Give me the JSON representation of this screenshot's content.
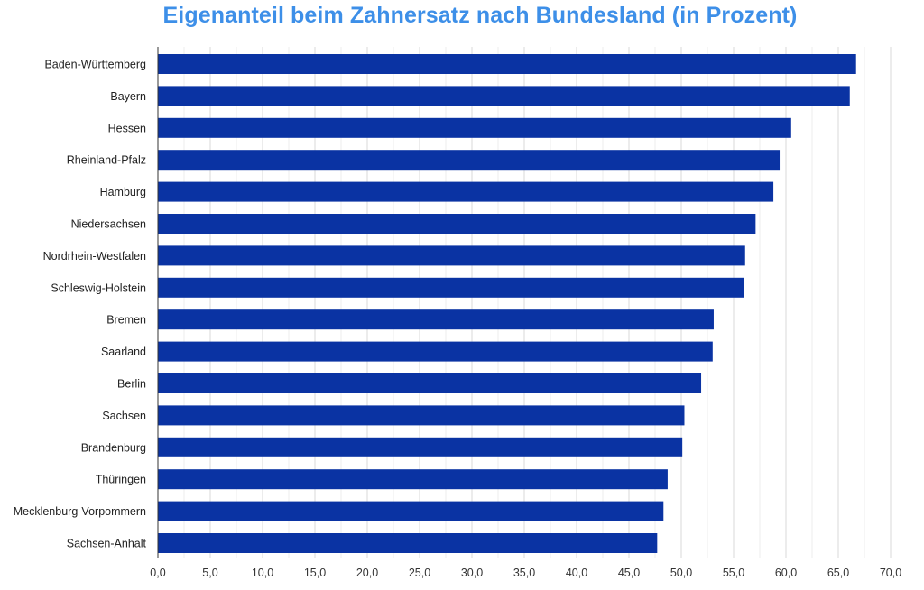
{
  "chart_data": {
    "type": "bar",
    "orientation": "horizontal",
    "title": "Eigenanteil beim Zahnersatz nach Bundesland (in Prozent)",
    "categories": [
      "Baden-Württemberg",
      "Bayern",
      "Hessen",
      "Rheinland-Pfalz",
      "Hamburg",
      "Niedersachsen",
      "Nordrhein-Westfalen",
      "Schleswig-Holstein",
      "Bremen",
      "Saarland",
      "Berlin",
      "Sachsen",
      "Brandenburg",
      "Thüringen",
      "Mecklenburg-Vorpommern",
      "Sachsen-Anhalt"
    ],
    "values": [
      66.7,
      66.1,
      60.5,
      59.4,
      58.8,
      57.1,
      56.1,
      56.0,
      53.1,
      53.0,
      51.9,
      50.3,
      50.1,
      48.7,
      48.3,
      47.7
    ],
    "xlim": [
      0,
      70
    ],
    "ticks": [
      "0,0",
      "5,0",
      "10,0",
      "15,0",
      "20,0",
      "25,0",
      "30,0",
      "35,0",
      "40,0",
      "45,0",
      "50,0",
      "55,0",
      "60,0",
      "65,0",
      "70,0"
    ],
    "grid": true,
    "bar_color": "#0a33a3",
    "title_color": "#3d8fe8"
  }
}
